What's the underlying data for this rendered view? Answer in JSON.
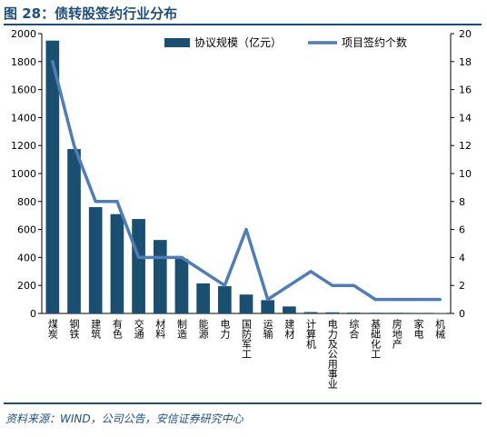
{
  "title": "图 28：债转股签约行业分布",
  "source": "资料来源：WIND，公司公告，安信证券研究中心",
  "colors": {
    "bar": "#1b4f72",
    "line": "#4f7db6",
    "title": "#1f4e79"
  },
  "chart_data": {
    "type": "bar+line",
    "categories": [
      "煤炭",
      "钢铁",
      "建筑",
      "有色",
      "交通",
      "材料",
      "制造",
      "能源",
      "电力",
      "国防军工",
      "运输",
      "建材",
      "计算机",
      "电力及公用事业",
      "综合",
      "基础化工",
      "房地产",
      "家电",
      "机械"
    ],
    "series": [
      {
        "name": "协议规模（亿元）",
        "type": "bar",
        "axis": "left",
        "values": [
          1950,
          1175,
          760,
          710,
          675,
          525,
          390,
          215,
          195,
          135,
          95,
          50,
          10,
          8,
          6,
          5,
          5,
          4,
          3
        ]
      },
      {
        "name": "项目签约个数",
        "type": "line",
        "axis": "right",
        "values": [
          18,
          12,
          8,
          8,
          4,
          4,
          4,
          3,
          2,
          6,
          1,
          2,
          3,
          2,
          2,
          1,
          1,
          1,
          1
        ]
      }
    ],
    "ylim_left": [
      0,
      2000
    ],
    "yticks_left": [
      0,
      200,
      400,
      600,
      800,
      1000,
      1200,
      1400,
      1600,
      1800,
      2000
    ],
    "ylim_right": [
      0,
      20
    ],
    "yticks_right": [
      0,
      2,
      4,
      6,
      8,
      10,
      12,
      14,
      16,
      18,
      20
    ],
    "legend_position": "top-right",
    "grid": false
  }
}
